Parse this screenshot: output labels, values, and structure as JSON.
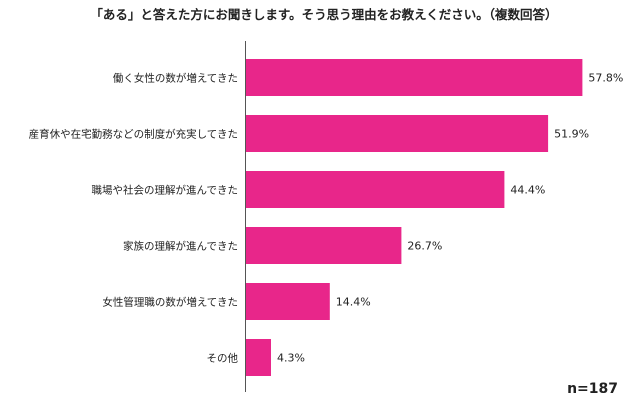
{
  "chart_data": {
    "type": "bar",
    "orientation": "horizontal",
    "title": "「ある」と答えた方にお聞きします。そう思う理由をお教えください。（複数回答）",
    "categories": [
      "働く女性の数が増えてきた",
      "産育休や在宅勤務などの制度が充実してきた",
      "職場や社会の理解が進んできた",
      "家族の理解が進んできた",
      "女性管理職の数が増えてきた",
      "その他"
    ],
    "values": [
      57.8,
      51.9,
      44.4,
      26.7,
      14.4,
      4.3
    ],
    "value_labels": [
      "57.8%",
      "51.9%",
      "44.4%",
      "26.7%",
      "14.4%",
      "4.3%"
    ],
    "unit": "%",
    "xlim": [
      0,
      60
    ],
    "sample_size": "n=187",
    "grid": false,
    "legend": "none",
    "bar_color": "#e8268a",
    "axis_color": "#555555"
  }
}
